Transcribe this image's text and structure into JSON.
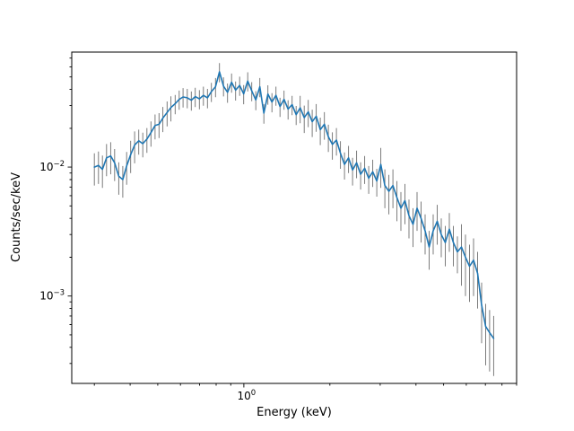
{
  "figure": {
    "background": "#ffffff"
  },
  "chart_data": {
    "type": "line",
    "title": "",
    "xlabel": "Energy (keV)",
    "ylabel": "Counts/sec/keV",
    "xscale": "log",
    "yscale": "log",
    "xlim": [
      0.25,
      9.0
    ],
    "ylim": [
      0.00021,
      0.078
    ],
    "grid": false,
    "legend": null,
    "xtick_exponents": [
      0
    ],
    "ytick_exponents": [
      -2,
      -3
    ],
    "line_color": "#1f77b4",
    "errorbar_color": "#6e6e6e",
    "spine_color": "#000000",
    "x": [
      0.3,
      0.31,
      0.32,
      0.331,
      0.342,
      0.353,
      0.365,
      0.377,
      0.389,
      0.402,
      0.415,
      0.429,
      0.443,
      0.458,
      0.473,
      0.489,
      0.505,
      0.521,
      0.539,
      0.556,
      0.575,
      0.594,
      0.613,
      0.634,
      0.655,
      0.676,
      0.699,
      0.722,
      0.746,
      0.77,
      0.796,
      0.822,
      0.849,
      0.877,
      0.906,
      0.936,
      0.967,
      0.999,
      1.032,
      1.066,
      1.101,
      1.137,
      1.175,
      1.214,
      1.254,
      1.295,
      1.338,
      1.382,
      1.428,
      1.475,
      1.524,
      1.574,
      1.626,
      1.68,
      1.735,
      1.792,
      1.851,
      1.913,
      1.976,
      2.041,
      2.108,
      2.178,
      2.25,
      2.324,
      2.401,
      2.48,
      2.562,
      2.647,
      2.734,
      2.824,
      2.918,
      3.014,
      3.113,
      3.216,
      3.322,
      3.432,
      3.545,
      3.662,
      3.783,
      3.908,
      4.037,
      4.17,
      4.308,
      4.45,
      4.597,
      4.749,
      4.906,
      5.068,
      5.235,
      5.408,
      5.586,
      5.77,
      5.961,
      6.158,
      6.361,
      6.571,
      6.788,
      7.012,
      7.243,
      7.482
    ],
    "y": [
      0.01,
      0.0103,
      0.0096,
      0.0118,
      0.0122,
      0.0108,
      0.0085,
      0.008,
      0.0102,
      0.0125,
      0.0148,
      0.016,
      0.0152,
      0.0165,
      0.0185,
      0.021,
      0.0215,
      0.024,
      0.0265,
      0.029,
      0.031,
      0.0335,
      0.035,
      0.0345,
      0.033,
      0.0352,
      0.0338,
      0.036,
      0.0345,
      0.0385,
      0.042,
      0.0548,
      0.0425,
      0.038,
      0.0455,
      0.0395,
      0.043,
      0.037,
      0.0465,
      0.039,
      0.0332,
      0.042,
      0.0262,
      0.0368,
      0.032,
      0.036,
      0.0295,
      0.0335,
      0.0282,
      0.0305,
      0.0255,
      0.0288,
      0.0242,
      0.0268,
      0.0225,
      0.0248,
      0.0195,
      0.0215,
      0.0172,
      0.015,
      0.0162,
      0.0128,
      0.0105,
      0.0118,
      0.0095,
      0.0108,
      0.0088,
      0.0098,
      0.0082,
      0.0092,
      0.0078,
      0.0105,
      0.0072,
      0.0065,
      0.0072,
      0.0058,
      0.0048,
      0.0055,
      0.0042,
      0.0036,
      0.0048,
      0.004,
      0.0032,
      0.0024,
      0.0032,
      0.0038,
      0.003,
      0.0026,
      0.0033,
      0.0026,
      0.0022,
      0.0024,
      0.002,
      0.0017,
      0.0019,
      0.0015,
      0.00085,
      0.00058,
      0.00052,
      0.00047
    ],
    "yerr": [
      0.0028,
      0.0029,
      0.0027,
      0.0033,
      0.0034,
      0.003,
      0.0024,
      0.0022,
      0.0029,
      0.0035,
      0.0041,
      0.0035,
      0.0033,
      0.0036,
      0.0041,
      0.0046,
      0.0047,
      0.0053,
      0.0058,
      0.0064,
      0.0053,
      0.0057,
      0.006,
      0.0059,
      0.0056,
      0.006,
      0.0057,
      0.0061,
      0.0059,
      0.0065,
      0.0071,
      0.0093,
      0.0072,
      0.0065,
      0.0077,
      0.0067,
      0.0073,
      0.0063,
      0.0079,
      0.0066,
      0.0056,
      0.0071,
      0.0045,
      0.0063,
      0.0054,
      0.0061,
      0.005,
      0.0057,
      0.0048,
      0.0052,
      0.0043,
      0.0069,
      0.0058,
      0.0064,
      0.0054,
      0.006,
      0.0047,
      0.0052,
      0.0041,
      0.0036,
      0.0039,
      0.0031,
      0.0025,
      0.0028,
      0.0023,
      0.0026,
      0.0021,
      0.0024,
      0.002,
      0.0022,
      0.0019,
      0.0036,
      0.0024,
      0.0022,
      0.0024,
      0.002,
      0.0016,
      0.0019,
      0.0014,
      0.0012,
      0.0016,
      0.0014,
      0.0011,
      0.0008,
      0.0011,
      0.0013,
      0.001,
      0.0009,
      0.0011,
      0.0009,
      0.0007,
      0.0012,
      0.001,
      0.0008,
      0.0009,
      0.0007,
      0.00042,
      0.00029,
      0.00026,
      0.00023
    ]
  }
}
